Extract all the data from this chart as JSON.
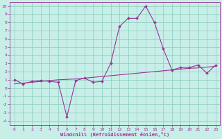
{
  "xlabel": "Windchill (Refroidissement éolien,°C)",
  "bg_color": "#c8eee8",
  "grid_color": "#88ccbb",
  "line_color": "#993399",
  "x_values": [
    0,
    1,
    2,
    3,
    4,
    5,
    6,
    7,
    8,
    9,
    10,
    11,
    12,
    13,
    14,
    15,
    16,
    17,
    18,
    19,
    20,
    21,
    22,
    23
  ],
  "line1_y": [
    1.0,
    0.5,
    0.8,
    0.9,
    0.8,
    0.7,
    -3.5,
    0.9,
    1.2,
    0.7,
    0.8,
    3.0,
    7.5,
    8.5,
    8.5,
    10.0,
    8.0,
    4.8,
    2.2,
    2.5,
    2.5,
    2.8,
    1.8,
    2.8
  ],
  "line2_y": [
    0.5,
    0.6,
    0.7,
    0.8,
    0.9,
    1.0,
    1.05,
    1.1,
    1.2,
    1.3,
    1.4,
    1.5,
    1.6,
    1.7,
    1.8,
    1.9,
    2.0,
    2.1,
    2.2,
    2.3,
    2.4,
    2.45,
    2.55,
    2.65
  ],
  "ylim": [
    -4.5,
    10.5
  ],
  "xlim": [
    -0.5,
    23.5
  ],
  "yticks": [
    -4,
    -3,
    -2,
    -1,
    0,
    1,
    2,
    3,
    4,
    5,
    6,
    7,
    8,
    9,
    10
  ],
  "xtick_labels": [
    "0",
    "1",
    "2",
    "3",
    "4",
    "5",
    "6",
    "7",
    "8",
    "9",
    "10",
    "11",
    "12",
    "13",
    "14",
    "15",
    "16",
    "17",
    "18",
    "19",
    "20",
    "21",
    "22",
    "23"
  ]
}
